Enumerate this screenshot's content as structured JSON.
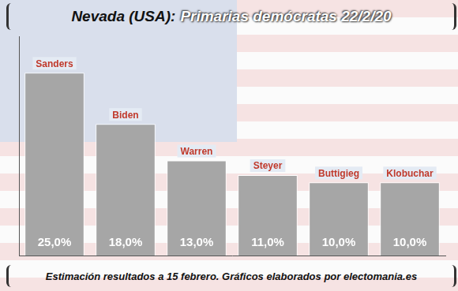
{
  "chart_data": {
    "type": "bar",
    "title": "Nevada (USA): Primarias demócratas 22/2/20",
    "footer": "Estimación resultados a 15 febrero. Gráficos elaborados por electomania.es",
    "categories": [
      "Sanders",
      "Biden",
      "Warren",
      "Steyer",
      "Buttigieg",
      "Klobuchar"
    ],
    "values": [
      25,
      18,
      13,
      11,
      10,
      10
    ],
    "value_labels": [
      "25,0%",
      "18,0%",
      "13,0%",
      "11,0%",
      "10,0%",
      "10,0%"
    ],
    "data_labels": true,
    "color": "#a6a6a6",
    "ylim": [
      0,
      30
    ],
    "grid": false,
    "tick_labels": false
  }
}
